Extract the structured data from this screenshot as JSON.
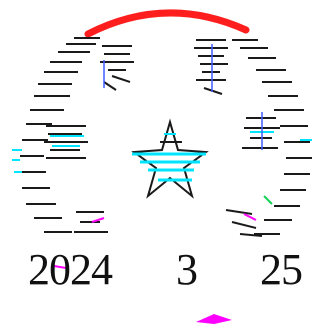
{
  "stamp": {
    "description_icon": "official-seal-icon",
    "colors": {
      "ring_top": "#ff1e1e",
      "ink": "#1a1a1a",
      "cyan": "#00e5ff",
      "magenta": "#ff00ff",
      "blue": "#3f5bff",
      "green": "#19d35b"
    }
  },
  "date": {
    "year": "2024",
    "month": "3",
    "day": "25"
  }
}
